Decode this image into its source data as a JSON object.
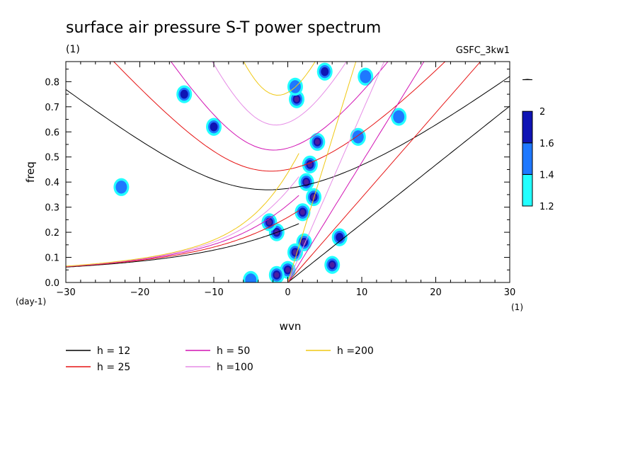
{
  "chart_data": {
    "type": "contour",
    "title": "surface air pressure S-T power spectrum",
    "subtitle": "(1)",
    "source_label": "GSFC_3kw1",
    "xlabel": "wvn",
    "ylabel": "freq",
    "x_unit_label": "(1)",
    "y_unit_label": "(day-1)",
    "xlim": [
      -30,
      30
    ],
    "ylim": [
      0,
      0.88
    ],
    "x_ticks": [
      "-30",
      "-20",
      "-10",
      "0",
      "10",
      "20",
      "30"
    ],
    "y_ticks": [
      "0.0",
      "0.1",
      "0.2",
      "0.3",
      "0.4",
      "0.5",
      "0.6",
      "0.7",
      "0.8"
    ],
    "colorbar": {
      "levels": [
        "1.2",
        "1.4",
        "1.6",
        "2"
      ],
      "colors": [
        "#22ffff",
        "#1e78ff",
        "#0f14b4",
        "#4b1ea0"
      ]
    },
    "dispersion_curves": [
      {
        "label": "h = 12",
        "h": 12,
        "color": "#000000"
      },
      {
        "label": "h = 25",
        "h": 25,
        "color": "#e61414"
      },
      {
        "label": "h = 50",
        "h": 50,
        "color": "#d214b4"
      },
      {
        "label": "h =100",
        "h": 100,
        "color": "#e68ce6"
      },
      {
        "label": "h =200",
        "h": 200,
        "color": "#f0c814"
      }
    ],
    "spectral_blobs": [
      {
        "x": 1.2,
        "y": 0.73,
        "level": 4
      },
      {
        "x": 1.0,
        "y": 0.78,
        "level": 2
      },
      {
        "x": 5.0,
        "y": 0.84,
        "level": 3
      },
      {
        "x": 4.0,
        "y": 0.56,
        "level": 4
      },
      {
        "x": 3.0,
        "y": 0.47,
        "level": 4
      },
      {
        "x": 2.5,
        "y": 0.4,
        "level": 4
      },
      {
        "x": 3.5,
        "y": 0.34,
        "level": 4
      },
      {
        "x": 2.0,
        "y": 0.28,
        "level": 4
      },
      {
        "x": 2.2,
        "y": 0.16,
        "level": 4
      },
      {
        "x": 1.0,
        "y": 0.12,
        "level": 4
      },
      {
        "x": 0.0,
        "y": 0.05,
        "level": 4
      },
      {
        "x": -1.5,
        "y": 0.03,
        "level": 4
      },
      {
        "x": -1.5,
        "y": 0.2,
        "level": 4
      },
      {
        "x": -2.5,
        "y": 0.24,
        "level": 4
      },
      {
        "x": 6.0,
        "y": 0.07,
        "level": 4
      },
      {
        "x": 7.0,
        "y": 0.18,
        "level": 3
      },
      {
        "x": -5.0,
        "y": 0.01,
        "level": 2
      },
      {
        "x": -10.0,
        "y": 0.62,
        "level": 3
      },
      {
        "x": -14.0,
        "y": 0.75,
        "level": 3
      },
      {
        "x": -22.5,
        "y": 0.38,
        "level": 2
      },
      {
        "x": 9.5,
        "y": 0.58,
        "level": 2
      },
      {
        "x": 15.0,
        "y": 0.66,
        "level": 2
      },
      {
        "x": 10.5,
        "y": 0.82,
        "level": 2
      }
    ],
    "legend_position": "bottom"
  }
}
